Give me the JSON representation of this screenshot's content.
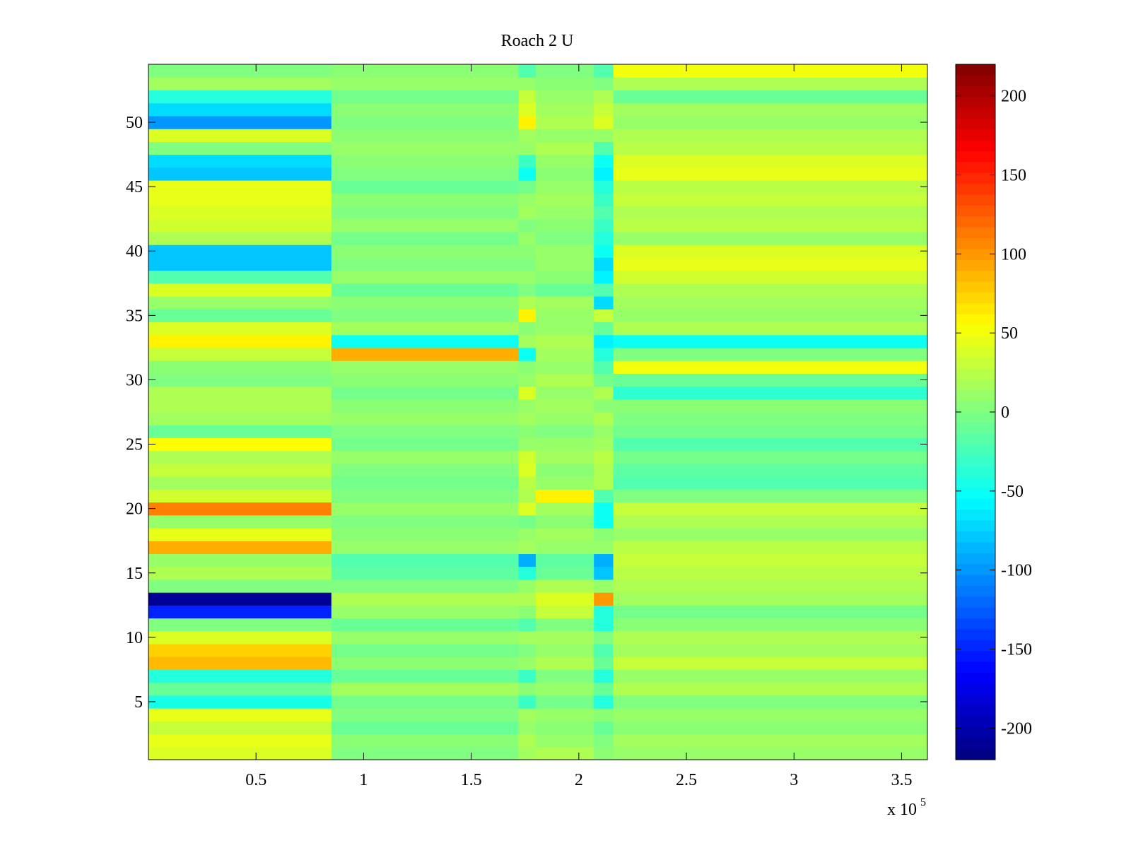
{
  "chart_data": {
    "type": "heatmap",
    "title": "Roach 2 U",
    "xlabel": "",
    "ylabel": "",
    "colormap": "jet",
    "x_range": [
      0,
      362000
    ],
    "y_range": [
      0.5,
      54.5
    ],
    "x_ticks": [
      50000,
      100000,
      150000,
      200000,
      250000,
      300000,
      350000
    ],
    "x_tick_labels": [
      "0.5",
      "1",
      "1.5",
      "2",
      "2.5",
      "3",
      "3.5"
    ],
    "x_exponent_label": "x 10",
    "x_exponent_power": "5",
    "y_ticks": [
      5,
      10,
      15,
      20,
      25,
      30,
      35,
      40,
      45,
      50
    ],
    "y_tick_labels": [
      "5",
      "10",
      "15",
      "20",
      "25",
      "30",
      "35",
      "40",
      "45",
      "50"
    ],
    "color_range": [
      -220,
      220
    ],
    "colorbar_ticks": [
      200,
      150,
      100,
      50,
      0,
      -50,
      -100,
      -150,
      -200
    ],
    "colorbar_tick_labels": [
      "200",
      "150",
      "100",
      "50",
      "0",
      "-50",
      "-100",
      "-150",
      "-200"
    ],
    "segment_bounds": [
      0,
      85000,
      172000,
      180000,
      207000,
      216000,
      362000
    ],
    "segment_values": {
      "rows_1_to_54": [
        [
          40,
          0,
          15,
          20,
          5,
          10
        ],
        [
          45,
          5,
          20,
          10,
          0,
          15
        ],
        [
          30,
          -10,
          10,
          5,
          -10,
          5
        ],
        [
          45,
          0,
          15,
          10,
          5,
          10
        ],
        [
          -45,
          -5,
          -30,
          -5,
          -40,
          0
        ],
        [
          -10,
          15,
          5,
          10,
          -10,
          20
        ],
        [
          -40,
          -10,
          -30,
          0,
          -40,
          10
        ],
        [
          85,
          5,
          10,
          20,
          -10,
          30
        ],
        [
          75,
          -5,
          0,
          10,
          -20,
          15
        ],
        [
          40,
          10,
          15,
          15,
          0,
          20
        ],
        [
          0,
          -10,
          -20,
          0,
          -40,
          5
        ],
        [
          -150,
          10,
          5,
          30,
          -40,
          -5
        ],
        [
          -210,
          20,
          20,
          40,
          100,
          15
        ],
        [
          0,
          0,
          10,
          20,
          10,
          20
        ],
        [
          20,
          -15,
          -40,
          -10,
          -80,
          25
        ],
        [
          10,
          -20,
          -90,
          -15,
          -90,
          30
        ],
        [
          90,
          10,
          15,
          10,
          10,
          25
        ],
        [
          45,
          5,
          10,
          15,
          5,
          10
        ],
        [
          10,
          0,
          -5,
          5,
          -50,
          20
        ],
        [
          110,
          10,
          40,
          15,
          -50,
          30
        ],
        [
          35,
          0,
          20,
          60,
          -20,
          0
        ],
        [
          15,
          -5,
          25,
          10,
          20,
          -20
        ],
        [
          30,
          0,
          40,
          5,
          20,
          -15
        ],
        [
          20,
          10,
          35,
          15,
          25,
          -5
        ],
        [
          55,
          -5,
          10,
          10,
          15,
          -20
        ],
        [
          -10,
          0,
          5,
          0,
          10,
          -5
        ],
        [
          15,
          10,
          15,
          10,
          20,
          0
        ],
        [
          20,
          5,
          10,
          15,
          5,
          5
        ],
        [
          20,
          -5,
          40,
          10,
          20,
          -35
        ],
        [
          0,
          5,
          10,
          20,
          -5,
          -10
        ],
        [
          5,
          10,
          5,
          10,
          -20,
          50
        ],
        [
          30,
          90,
          -50,
          15,
          -40,
          0
        ],
        [
          60,
          -50,
          15,
          20,
          -60,
          -50
        ],
        [
          40,
          15,
          5,
          10,
          -10,
          20
        ],
        [
          -10,
          0,
          60,
          10,
          30,
          10
        ],
        [
          10,
          5,
          20,
          15,
          -70,
          15
        ],
        [
          40,
          -10,
          0,
          -10,
          -20,
          20
        ],
        [
          -20,
          10,
          10,
          5,
          -60,
          35
        ],
        [
          -80,
          0,
          0,
          10,
          -70,
          45
        ],
        [
          -80,
          5,
          5,
          10,
          -50,
          40
        ],
        [
          20,
          -5,
          10,
          0,
          -40,
          10
        ],
        [
          35,
          10,
          0,
          5,
          -30,
          25
        ],
        [
          40,
          0,
          15,
          10,
          -20,
          20
        ],
        [
          45,
          5,
          10,
          15,
          -30,
          30
        ],
        [
          45,
          -10,
          -5,
          10,
          -40,
          25
        ],
        [
          -80,
          0,
          -50,
          5,
          -60,
          45
        ],
        [
          -70,
          5,
          -30,
          10,
          -50,
          40
        ],
        [
          0,
          10,
          10,
          20,
          -20,
          25
        ],
        [
          40,
          5,
          15,
          10,
          10,
          20
        ],
        [
          -100,
          0,
          60,
          20,
          40,
          10
        ],
        [
          -70,
          5,
          40,
          15,
          30,
          15
        ],
        [
          -40,
          -5,
          30,
          10,
          20,
          -10
        ],
        [
          15,
          10,
          10,
          5,
          0,
          20
        ],
        [
          0,
          5,
          -20,
          0,
          -20,
          50
        ]
      ]
    }
  }
}
